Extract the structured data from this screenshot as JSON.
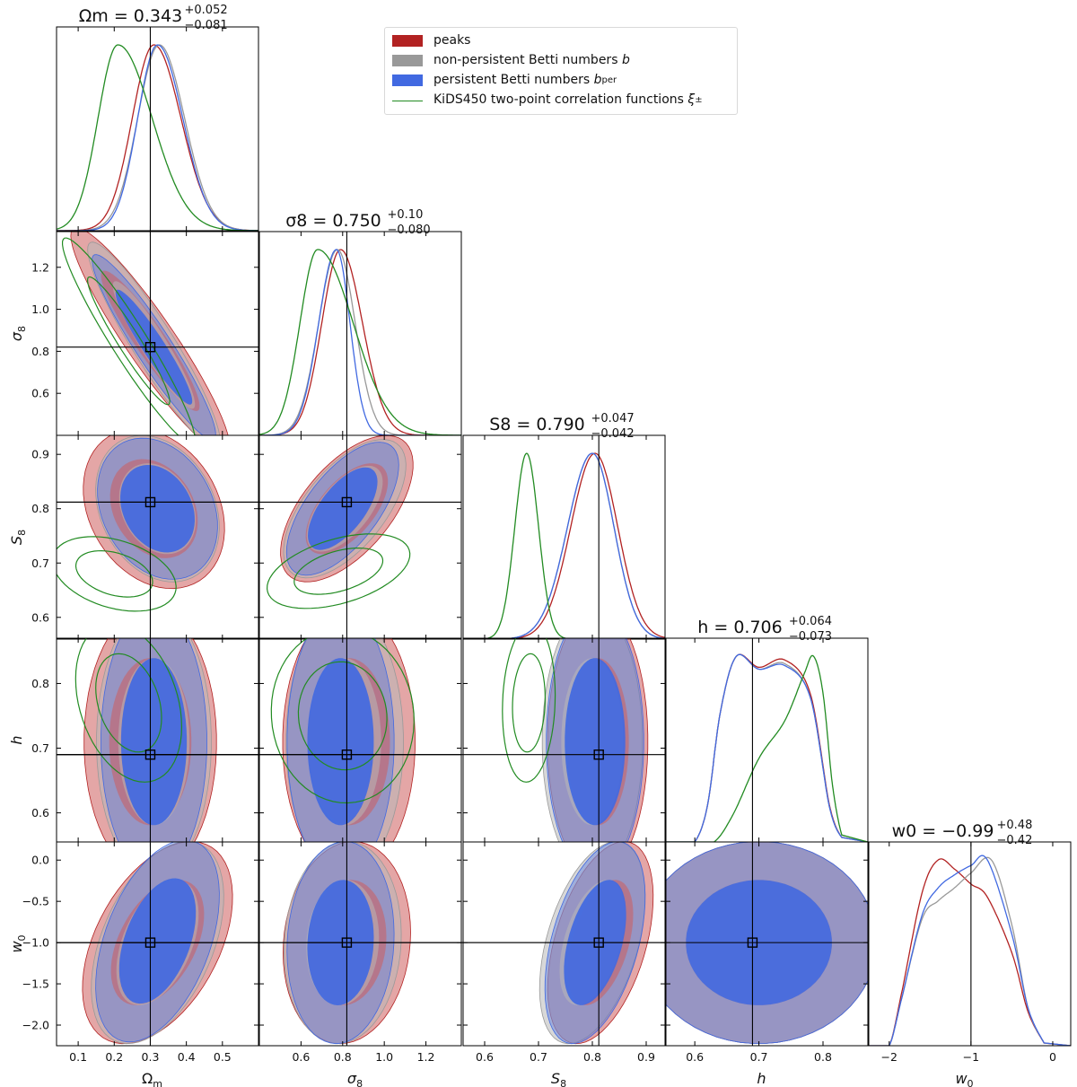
{
  "chart_data": {
    "type": "triangle_corner_plot",
    "parameters": [
      {
        "name": "Omega_m",
        "label": "Ωm",
        "title": "Ωm = 0.343 +0.052 −0.081",
        "range": [
          0.04,
          0.6
        ],
        "ticks": [
          0.1,
          0.2,
          0.3,
          0.4,
          0.5
        ],
        "tick_labels": [
          "0.1",
          "0.2",
          "0.3",
          "0.4",
          "0.5"
        ],
        "truth": 0.3
      },
      {
        "name": "sigma_8",
        "label": "σ8",
        "title": "σ8 = 0.750 +0.10 −0.080",
        "range": [
          0.4,
          1.37
        ],
        "ticks": [
          0.6,
          0.8,
          1.0,
          1.2
        ],
        "tick_labels": [
          "0.6",
          "0.8",
          "1.0",
          "1.2"
        ],
        "truth": 0.82
      },
      {
        "name": "S_8",
        "label": "S8",
        "title": "S8 = 0.790 +0.047 −0.042",
        "range": [
          0.56,
          0.935
        ],
        "ticks": [
          0.6,
          0.7,
          0.8,
          0.9
        ],
        "tick_labels": [
          "0.6",
          "0.7",
          "0.8",
          "0.9"
        ],
        "truth": 0.812
      },
      {
        "name": "h",
        "label": "h",
        "title": "h = 0.706 +0.064 −0.073",
        "range": [
          0.555,
          0.87
        ],
        "ticks": [
          0.6,
          0.7,
          0.8
        ],
        "tick_labels": [
          "0.6",
          "0.7",
          "0.8"
        ],
        "truth": 0.69
      },
      {
        "name": "w_0",
        "label": "w0",
        "title": "w0 = −0.99 +0.48 −0.42",
        "range": [
          -2.25,
          0.22
        ],
        "ticks": [
          -2,
          -1,
          0
        ],
        "tick_labels": [
          "−2",
          "−1",
          "0"
        ],
        "y_ticks": [
          0.0,
          -0.5,
          -1.0,
          -1.5,
          -2.0
        ],
        "y_tick_labels": [
          "0.0",
          "−0.5",
          "−1.0",
          "−1.5",
          "−2.0"
        ],
        "truth": -1.0
      }
    ],
    "param_titles": [
      {
        "main": "Ωm = 0.343",
        "sup": "+0.052",
        "sub": "−0.081"
      },
      {
        "main": "σ8 = 0.750",
        "sup": "+0.10",
        "sub": "−0.080"
      },
      {
        "main": "S8 = 0.790",
        "sup": "+0.047",
        "sub": "−0.042"
      },
      {
        "main": "h = 0.706",
        "sup": "+0.064",
        "sub": "−0.073"
      },
      {
        "main": "w0 = −0.99",
        "sup": "+0.48",
        "sub": "−0.42"
      }
    ],
    "series": [
      {
        "name": "peaks",
        "color": "#b22222",
        "style": "filled"
      },
      {
        "name": "non-persistent Betti numbers b",
        "color": "#999999",
        "style": "filled"
      },
      {
        "name": "persistent Betti numbers b^per",
        "color": "#4169e1",
        "style": "filled"
      },
      {
        "name": "KiDS450 two-point correlation functions ξ±",
        "color": "#228b22",
        "style": "line"
      }
    ],
    "marginals": {
      "Omega_m": {
        "peaks": {
          "mode": 0.31,
          "sigma_l": 0.06,
          "sigma_r": 0.075
        },
        "betti": {
          "mode": 0.325,
          "sigma_l": 0.06,
          "sigma_r": 0.07
        },
        "per": {
          "mode": 0.32,
          "sigma_l": 0.055,
          "sigma_r": 0.07
        },
        "kids": {
          "mode": 0.21,
          "sigma_l": 0.055,
          "sigma_r": 0.095
        }
      },
      "sigma_8": {
        "peaks": {
          "mode": 0.79,
          "sigma_l": 0.09,
          "sigma_r": 0.105
        },
        "betti": {
          "mode": 0.775,
          "sigma_l": 0.09,
          "sigma_r": 0.085
        },
        "per": {
          "mode": 0.77,
          "sigma_l": 0.085,
          "sigma_r": 0.065
        },
        "kids": {
          "mode": 0.68,
          "sigma_l": 0.085,
          "sigma_r": 0.17
        }
      },
      "S_8": {
        "peaks": {
          "mode": 0.805,
          "sigma_l": 0.045,
          "sigma_r": 0.042
        },
        "betti": {
          "mode": 0.8,
          "sigma_l": 0.046,
          "sigma_r": 0.04
        },
        "per": {
          "mode": 0.8,
          "sigma_l": 0.046,
          "sigma_r": 0.04
        },
        "kids": {
          "mode": 0.678,
          "sigma_l": 0.022,
          "sigma_r": 0.022
        }
      },
      "h": {
        "peaks": {
          "points": [
            [
              0.6,
              0.0
            ],
            [
              0.62,
              0.2
            ],
            [
              0.64,
              0.7
            ],
            [
              0.665,
              1.0
            ],
            [
              0.7,
              0.94
            ],
            [
              0.74,
              0.98
            ],
            [
              0.78,
              0.8
            ],
            [
              0.81,
              0.2
            ],
            [
              0.83,
              0.02
            ]
          ]
        },
        "betti": {
          "points": [
            [
              0.6,
              0.0
            ],
            [
              0.62,
              0.2
            ],
            [
              0.64,
              0.7
            ],
            [
              0.665,
              1.0
            ],
            [
              0.7,
              0.93
            ],
            [
              0.74,
              0.96
            ],
            [
              0.78,
              0.78
            ],
            [
              0.81,
              0.19
            ],
            [
              0.83,
              0.02
            ]
          ]
        },
        "per": {
          "points": [
            [
              0.6,
              0.0
            ],
            [
              0.62,
              0.2
            ],
            [
              0.64,
              0.7
            ],
            [
              0.665,
              1.0
            ],
            [
              0.7,
              0.93
            ],
            [
              0.74,
              0.95
            ],
            [
              0.78,
              0.78
            ],
            [
              0.81,
              0.19
            ],
            [
              0.83,
              0.02
            ]
          ]
        },
        "kids": {
          "points": [
            [
              0.63,
              0.0
            ],
            [
              0.66,
              0.15
            ],
            [
              0.7,
              0.45
            ],
            [
              0.74,
              0.65
            ],
            [
              0.77,
              0.9
            ],
            [
              0.785,
              1.0
            ],
            [
              0.8,
              0.8
            ],
            [
              0.815,
              0.3
            ],
            [
              0.83,
              0.03
            ]
          ]
        }
      },
      "w_0": {
        "peaks": {
          "points": [
            [
              -2.0,
              0.0
            ],
            [
              -1.85,
              0.28
            ],
            [
              -1.6,
              0.82
            ],
            [
              -1.4,
              1.0
            ],
            [
              -1.2,
              0.95
            ],
            [
              -1.0,
              0.87
            ],
            [
              -0.8,
              0.8
            ],
            [
              -0.5,
              0.5
            ],
            [
              -0.3,
              0.18
            ],
            [
              -0.1,
              0.01
            ]
          ]
        },
        "betti": {
          "points": [
            [
              -2.0,
              0.0
            ],
            [
              -1.85,
              0.25
            ],
            [
              -1.6,
              0.68
            ],
            [
              -1.4,
              0.78
            ],
            [
              -1.2,
              0.85
            ],
            [
              -1.0,
              0.93
            ],
            [
              -0.75,
              1.0
            ],
            [
              -0.5,
              0.65
            ],
            [
              -0.3,
              0.2
            ],
            [
              -0.1,
              0.01
            ]
          ]
        },
        "per": {
          "points": [
            [
              -2.0,
              0.0
            ],
            [
              -1.85,
              0.25
            ],
            [
              -1.6,
              0.7
            ],
            [
              -1.4,
              0.85
            ],
            [
              -1.2,
              0.92
            ],
            [
              -1.0,
              0.97
            ],
            [
              -0.8,
              1.0
            ],
            [
              -0.5,
              0.6
            ],
            [
              -0.3,
              0.2
            ],
            [
              -0.1,
              0.01
            ]
          ]
        }
      }
    },
    "contours_2d": {
      "1-0": {
        "peaks": [
          0.3,
          0.85,
          0.09,
          0.22,
          -0.93
        ],
        "betti": [
          0.31,
          0.83,
          0.075,
          0.2,
          -0.93
        ],
        "per": [
          0.31,
          0.82,
          0.07,
          0.18,
          -0.94
        ],
        "kids": [
          0.24,
          0.85,
          0.075,
          0.2,
          -0.95
        ]
      },
      "2-0": {
        "peaks": [
          0.31,
          0.8,
          0.08,
          0.06,
          -0.25
        ],
        "betti": [
          0.32,
          0.8,
          0.07,
          0.055,
          -0.25
        ],
        "per": [
          0.32,
          0.8,
          0.068,
          0.053,
          -0.25
        ],
        "kids": [
          0.2,
          0.68,
          0.07,
          0.028,
          -0.35
        ]
      },
      "2-1": {
        "peaks": [
          0.82,
          0.8,
          0.13,
          0.055,
          0.6
        ],
        "betti": [
          0.81,
          0.8,
          0.12,
          0.052,
          0.62
        ],
        "per": [
          0.8,
          0.8,
          0.11,
          0.05,
          0.65
        ],
        "kids": [
          0.78,
          0.685,
          0.14,
          0.028,
          0.45
        ]
      },
      "3-0": {
        "peaks": [
          0.3,
          0.71,
          0.075,
          0.085,
          0.0
        ],
        "betti": [
          0.31,
          0.71,
          0.065,
          0.085,
          0.0
        ],
        "per": [
          0.31,
          0.71,
          0.06,
          0.085,
          0.0
        ],
        "kids": [
          0.24,
          0.77,
          0.06,
          0.05,
          -0.3
        ]
      },
      "3-1": {
        "peaks": [
          0.83,
          0.71,
          0.13,
          0.085,
          0.0
        ],
        "betti": [
          0.81,
          0.71,
          0.115,
          0.085,
          0.0
        ],
        "per": [
          0.79,
          0.71,
          0.105,
          0.085,
          0.0
        ],
        "kids": [
          0.8,
          0.75,
          0.14,
          0.055,
          -0.05
        ]
      },
      "3-2": {
        "peaks": [
          0.81,
          0.71,
          0.038,
          0.085,
          0.0
        ],
        "betti": [
          0.8,
          0.71,
          0.038,
          0.085,
          0.0
        ],
        "per": [
          0.805,
          0.71,
          0.037,
          0.085,
          0.0
        ],
        "kids": [
          0.682,
          0.77,
          0.02,
          0.05,
          0.1
        ]
      },
      "4-0": {
        "peaks": [
          0.32,
          -1.0,
          0.085,
          0.5,
          0.45
        ],
        "betti": [
          0.32,
          -1.0,
          0.075,
          0.5,
          0.45
        ],
        "per": [
          0.32,
          -0.98,
          0.07,
          0.5,
          0.45
        ]
      },
      "4-1": {
        "peaks": [
          0.82,
          -1.0,
          0.125,
          0.5,
          0.1
        ],
        "betti": [
          0.8,
          -1.0,
          0.115,
          0.5,
          0.08
        ],
        "per": [
          0.79,
          -1.0,
          0.105,
          0.5,
          0.08
        ]
      },
      "4-2": {
        "peaks": [
          0.815,
          -1.0,
          0.04,
          0.5,
          0.45
        ],
        "betti": [
          0.8,
          -1.0,
          0.04,
          0.5,
          0.45
        ],
        "per": [
          0.805,
          -1.0,
          0.038,
          0.5,
          0.45
        ]
      },
      "4-3": {
        "peaks": [
          0.7,
          -1.0,
          0.075,
          0.5,
          0.0
        ],
        "betti": [
          0.7,
          -1.0,
          0.075,
          0.5,
          0.0
        ],
        "per": [
          0.7,
          -1.0,
          0.075,
          0.5,
          0.0
        ]
      }
    }
  },
  "legend": {
    "peaks": "peaks",
    "betti": "non-persistent Betti numbers",
    "betti_sym": "b",
    "per": "persistent Betti numbers",
    "per_sym": "b",
    "per_sup": "per",
    "kids": "KiDS450 two-point correlation functions",
    "kids_sym": "ξ",
    "kids_sub": "±"
  },
  "colors": {
    "peaks_fill": "#cd5c5c",
    "peaks_line": "#b22222",
    "betti_fill": "#b8b8b8",
    "betti_line": "#999999",
    "per_fill": "#4169e1",
    "per_line": "#4169e1",
    "kids_line": "#228b22",
    "axis": "#000000"
  }
}
